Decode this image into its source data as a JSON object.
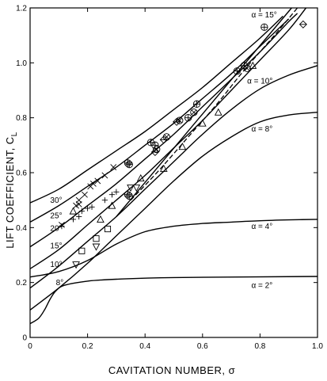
{
  "chart_data": {
    "type": "line",
    "xlabel": "CAVITATION NUMBER,  σ",
    "ylabel": "LIFT  COEFFICIENT,  C",
    "ylabel_subscript": "L",
    "xlim": [
      0,
      1.0
    ],
    "ylim": [
      0,
      1.2
    ],
    "xticks": [
      0,
      0.2,
      0.4,
      0.6,
      0.8,
      1.0
    ],
    "xtick_labels": [
      "0",
      "0.2",
      "0.4",
      "0.6",
      "0.8",
      "1.0"
    ],
    "yticks": [
      0,
      0.2,
      0.4,
      0.6,
      0.8,
      1.0,
      1.2
    ],
    "ytick_labels": [
      "0",
      "0.2",
      "0.4",
      "0.6",
      "0.8",
      "1.0",
      "1.2"
    ],
    "grid": false,
    "series": [
      {
        "name": "α = 2°",
        "style": "solid",
        "x": [
          0,
          0.03,
          0.05,
          0.07,
          0.09,
          0.12,
          0.2,
          0.3,
          0.5,
          1.0
        ],
        "y": [
          0.05,
          0.07,
          0.1,
          0.14,
          0.17,
          0.19,
          0.205,
          0.212,
          0.218,
          0.222
        ]
      },
      {
        "name": "α = 4°",
        "style": "solid",
        "x": [
          0,
          0.1,
          0.2,
          0.3,
          0.4,
          0.5,
          0.6,
          0.7,
          0.8,
          0.9,
          1.0
        ],
        "y": [
          0.22,
          0.24,
          0.28,
          0.34,
          0.385,
          0.405,
          0.415,
          0.42,
          0.425,
          0.428,
          0.43
        ]
      },
      {
        "name": "α = 8°",
        "style": "solid",
        "x": [
          0,
          0.1,
          0.2,
          0.3,
          0.4,
          0.5,
          0.6,
          0.7,
          0.8,
          0.9,
          1.0
        ],
        "y": [
          0.1,
          0.18,
          0.27,
          0.37,
          0.47,
          0.57,
          0.66,
          0.73,
          0.785,
          0.81,
          0.82
        ]
      },
      {
        "name": "α = 10°",
        "style": "solid",
        "x": [
          0,
          0.1,
          0.2,
          0.3,
          0.4,
          0.5,
          0.6,
          0.7,
          0.8,
          0.9,
          1.0
        ],
        "y": [
          0.18,
          0.26,
          0.35,
          0.44,
          0.54,
          0.64,
          0.74,
          0.83,
          0.905,
          0.955,
          0.99
        ]
      },
      {
        "name": "15°",
        "style": "solid",
        "x": [
          0,
          0.1,
          0.2,
          0.3,
          0.4,
          0.5,
          0.6,
          0.7,
          0.8,
          0.9,
          0.96
        ],
        "y": [
          0.25,
          0.32,
          0.41,
          0.5,
          0.59,
          0.69,
          0.79,
          0.9,
          1.01,
          1.12,
          1.2
        ]
      },
      {
        "name": "20°",
        "style": "solid",
        "x": [
          0,
          0.1,
          0.2,
          0.3,
          0.4,
          0.5,
          0.6,
          0.7,
          0.8,
          0.9,
          0.93
        ],
        "y": [
          0.33,
          0.4,
          0.48,
          0.56,
          0.65,
          0.74,
          0.84,
          0.94,
          1.04,
          1.15,
          1.18
        ]
      },
      {
        "name": "25°",
        "style": "solid",
        "x": [
          0,
          0.1,
          0.2,
          0.3,
          0.4,
          0.5,
          0.6,
          0.7,
          0.8,
          0.9
        ],
        "y": [
          0.42,
          0.48,
          0.55,
          0.62,
          0.7,
          0.78,
          0.87,
          0.96,
          1.06,
          1.16
        ]
      },
      {
        "name": "30°",
        "style": "solid",
        "x": [
          0,
          0.1,
          0.2,
          0.3,
          0.4,
          0.5,
          0.6,
          0.7,
          0.8,
          0.88
        ],
        "y": [
          0.49,
          0.54,
          0.61,
          0.68,
          0.75,
          0.83,
          0.91,
          1.0,
          1.09,
          1.17
        ]
      },
      {
        "name": "",
        "style": "solid",
        "x": [
          0.3,
          0.91
        ],
        "y": [
          0.44,
          1.2
        ]
      },
      {
        "name": "",
        "style": "dashed",
        "x": [
          0.35,
          0.45,
          0.55,
          0.65,
          0.75,
          0.85,
          0.93
        ],
        "y": [
          0.5,
          0.61,
          0.73,
          0.85,
          0.98,
          1.1,
          1.2
        ]
      }
    ],
    "scatter_points": [
      {
        "marker": "x",
        "x": 0.11,
        "y": 0.41
      },
      {
        "marker": "x",
        "x": 0.16,
        "y": 0.48
      },
      {
        "marker": "x",
        "x": 0.17,
        "y": 0.5
      },
      {
        "marker": "x",
        "x": 0.19,
        "y": 0.52
      },
      {
        "marker": "x",
        "x": 0.21,
        "y": 0.55
      },
      {
        "marker": "x",
        "x": 0.22,
        "y": 0.56
      },
      {
        "marker": "x",
        "x": 0.235,
        "y": 0.57
      },
      {
        "marker": "x",
        "x": 0.26,
        "y": 0.59
      },
      {
        "marker": "x",
        "x": 0.29,
        "y": 0.62
      },
      {
        "marker": "x",
        "x": 0.17,
        "y": 0.485
      },
      {
        "marker": "plus",
        "x": 0.11,
        "y": 0.405
      },
      {
        "marker": "plus",
        "x": 0.15,
        "y": 0.43
      },
      {
        "marker": "plus",
        "x": 0.18,
        "y": 0.46
      },
      {
        "marker": "plus",
        "x": 0.2,
        "y": 0.47
      },
      {
        "marker": "plus",
        "x": 0.215,
        "y": 0.475
      },
      {
        "marker": "plus",
        "x": 0.26,
        "y": 0.5
      },
      {
        "marker": "plus",
        "x": 0.285,
        "y": 0.52
      },
      {
        "marker": "plus",
        "x": 0.3,
        "y": 0.53
      },
      {
        "marker": "plus",
        "x": 0.17,
        "y": 0.44
      },
      {
        "marker": "circle-plus",
        "x": 0.34,
        "y": 0.635
      },
      {
        "marker": "circle-plus",
        "x": 0.345,
        "y": 0.63
      },
      {
        "marker": "circle-plus",
        "x": 0.42,
        "y": 0.71
      },
      {
        "marker": "circle-plus",
        "x": 0.435,
        "y": 0.7
      },
      {
        "marker": "circle-plus",
        "x": 0.55,
        "y": 0.8
      },
      {
        "marker": "circle-plus",
        "x": 0.58,
        "y": 0.85
      },
      {
        "marker": "circle-plus",
        "x": 0.72,
        "y": 0.97
      },
      {
        "marker": "circle-plus",
        "x": 0.745,
        "y": 0.99
      },
      {
        "marker": "circle-plus",
        "x": 0.815,
        "y": 1.13
      },
      {
        "marker": "circle-plus",
        "x": 0.34,
        "y": 0.52
      },
      {
        "marker": "circle-plus",
        "x": 0.345,
        "y": 0.515
      },
      {
        "marker": "circle-x",
        "x": 0.44,
        "y": 0.685
      },
      {
        "marker": "circle-x",
        "x": 0.475,
        "y": 0.73
      },
      {
        "marker": "circle-x",
        "x": 0.52,
        "y": 0.79
      },
      {
        "marker": "circle-x",
        "x": 0.57,
        "y": 0.82
      },
      {
        "marker": "circle-x",
        "x": 0.755,
        "y": 0.98
      },
      {
        "marker": "diamond",
        "x": 0.435,
        "y": 0.675
      },
      {
        "marker": "diamond",
        "x": 0.465,
        "y": 0.72
      },
      {
        "marker": "diamond",
        "x": 0.51,
        "y": 0.785
      },
      {
        "marker": "diamond",
        "x": 0.95,
        "y": 1.14
      },
      {
        "marker": "triangle",
        "x": 0.245,
        "y": 0.43
      },
      {
        "marker": "triangle",
        "x": 0.285,
        "y": 0.48
      },
      {
        "marker": "triangle",
        "x": 0.385,
        "y": 0.58
      },
      {
        "marker": "triangle",
        "x": 0.465,
        "y": 0.615
      },
      {
        "marker": "triangle",
        "x": 0.53,
        "y": 0.695
      },
      {
        "marker": "triangle",
        "x": 0.6,
        "y": 0.78
      },
      {
        "marker": "triangle",
        "x": 0.655,
        "y": 0.82
      },
      {
        "marker": "triangle",
        "x": 0.775,
        "y": 0.99
      },
      {
        "marker": "triangle",
        "x": 0.15,
        "y": 0.46
      },
      {
        "marker": "triangle-down",
        "x": 0.16,
        "y": 0.265
      },
      {
        "marker": "triangle-down",
        "x": 0.23,
        "y": 0.33
      },
      {
        "marker": "triangle-down",
        "x": 0.35,
        "y": 0.545
      },
      {
        "marker": "triangle-down",
        "x": 0.37,
        "y": 0.545
      },
      {
        "marker": "square",
        "x": 0.18,
        "y": 0.315
      },
      {
        "marker": "square",
        "x": 0.23,
        "y": 0.36
      },
      {
        "marker": "square",
        "x": 0.27,
        "y": 0.395
      }
    ],
    "annotations": [
      {
        "text": "α = 15°",
        "x": 0.77,
        "y": 1.175
      },
      {
        "text": "α = 10°",
        "x": 0.755,
        "y": 0.935
      },
      {
        "text": "α = 8°",
        "x": 0.77,
        "y": 0.76
      },
      {
        "text": "α = 4°",
        "x": 0.77,
        "y": 0.405
      },
      {
        "text": "α = 2°",
        "x": 0.77,
        "y": 0.19
      },
      {
        "text": "30°",
        "x": 0.07,
        "y": 0.5
      },
      {
        "text": "25°",
        "x": 0.07,
        "y": 0.444
      },
      {
        "text": "20°",
        "x": 0.07,
        "y": 0.398
      },
      {
        "text": "15°",
        "x": 0.07,
        "y": 0.334
      },
      {
        "text": "10°",
        "x": 0.07,
        "y": 0.267
      },
      {
        "text": "8°",
        "x": 0.09,
        "y": 0.2
      }
    ]
  }
}
